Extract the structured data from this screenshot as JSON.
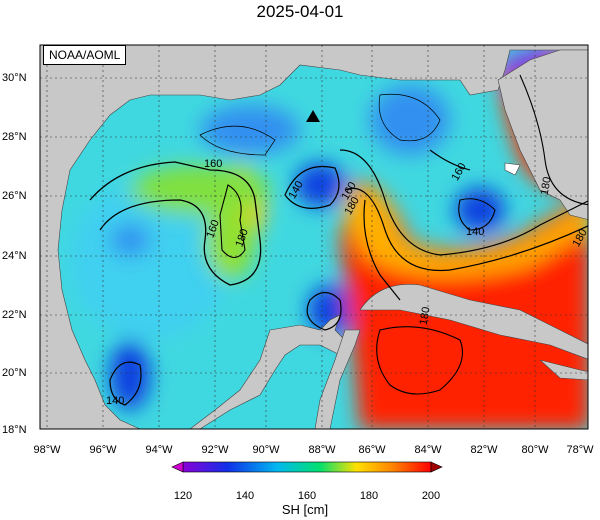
{
  "title": "2025-04-01",
  "source": "NOAA/AOML",
  "lat_labels": [
    "30°N",
    "28°N",
    "26°N",
    "24°N",
    "22°N",
    "20°N",
    "18°N"
  ],
  "lon_labels": [
    "98°W",
    "96°W",
    "94°W",
    "92°W",
    "90°W",
    "88°W",
    "86°W",
    "84°W",
    "82°W",
    "80°W",
    "78°W"
  ],
  "contour_labels": [
    "160",
    "160",
    "160",
    "180",
    "180",
    "180",
    "140",
    "140",
    "140",
    "160",
    "180",
    "180"
  ],
  "colorbar": {
    "ticks": [
      "120",
      "140",
      "160",
      "180",
      "200"
    ],
    "label": "SH [cm]",
    "colors": [
      "#8a00d8",
      "#1030e8",
      "#00b8f0",
      "#00e070",
      "#ffe000",
      "#ff8000",
      "#ff0000"
    ]
  },
  "colors": {
    "land": "#c8c8c8",
    "warm": "#ff3000",
    "loop_current": "#ffb000",
    "basin": "#40d8e0"
  },
  "marker": "triangle"
}
